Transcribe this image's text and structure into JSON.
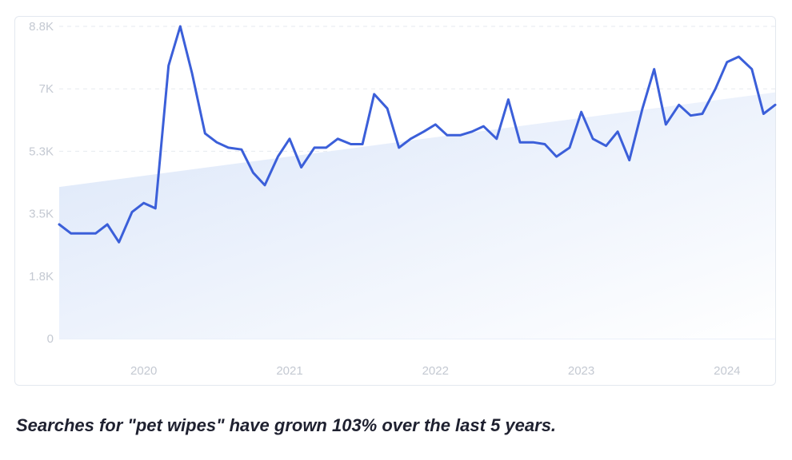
{
  "caption": "Searches for \"pet wipes\" have grown 103% over the last 5 years.",
  "colors": {
    "line": "#3b5fd9",
    "trend_fill_top": "#dbe6f9",
    "trend_fill_bottom": "#ffffff",
    "grid": "#e6e9ef",
    "tick": "#c4c9d2"
  },
  "chart_data": {
    "type": "line",
    "title": "",
    "xlabel": "",
    "ylabel": "",
    "y_ticks": [
      "0",
      "1.8K",
      "3.5K",
      "5.3K",
      "7K",
      "8.8K"
    ],
    "y_tick_values": [
      0,
      1750,
      3500,
      5250,
      7000,
      8750
    ],
    "x_ticks": [
      "2020",
      "2021",
      "2022",
      "2023",
      "2024"
    ],
    "x_tick_values": [
      2020.0,
      2021.0,
      2022.0,
      2023.0,
      2024.0
    ],
    "xlim": [
      2019.42,
      2024.33
    ],
    "ylim": [
      0,
      8750
    ],
    "grid": true,
    "grid_style": "dashed",
    "series": [
      {
        "type": "line",
        "x": [
          2019.42,
          2019.5,
          2019.58,
          2019.67,
          2019.75,
          2019.83,
          2019.92,
          2020.0,
          2020.08,
          2020.17,
          2020.25,
          2020.33,
          2020.42,
          2020.5,
          2020.58,
          2020.67,
          2020.75,
          2020.83,
          2020.92,
          2021.0,
          2021.08,
          2021.17,
          2021.25,
          2021.33,
          2021.42,
          2021.5,
          2021.58,
          2021.67,
          2021.75,
          2021.83,
          2021.92,
          2022.0,
          2022.08,
          2022.17,
          2022.25,
          2022.33,
          2022.42,
          2022.5,
          2022.58,
          2022.67,
          2022.75,
          2022.83,
          2022.92,
          2023.0,
          2023.08,
          2023.17,
          2023.25,
          2023.33,
          2023.42,
          2023.5,
          2023.58,
          2023.67,
          2023.75,
          2023.83,
          2023.92,
          2024.0,
          2024.08,
          2024.17,
          2024.25,
          2024.33
        ],
        "y": [
          3200,
          2950,
          2950,
          2950,
          3200,
          2700,
          3550,
          3800,
          3650,
          7650,
          8750,
          7450,
          5750,
          5500,
          5350,
          5300,
          4650,
          4300,
          5100,
          5600,
          4800,
          5350,
          5350,
          5600,
          5450,
          5450,
          6850,
          6450,
          5350,
          5600,
          5800,
          6000,
          5700,
          5700,
          5800,
          5950,
          5600,
          6700,
          5500,
          5500,
          5450,
          5100,
          5350,
          6350,
          5600,
          5400,
          5800,
          5000,
          6450,
          7550,
          6000,
          6550,
          6250,
          6300,
          7000,
          7750,
          7900,
          7550,
          6300,
          6550
        ]
      },
      {
        "type": "area",
        "name": "",
        "x": [
          2019.42,
          2024.33
        ],
        "y": [
          4250,
          6900
        ]
      }
    ]
  }
}
